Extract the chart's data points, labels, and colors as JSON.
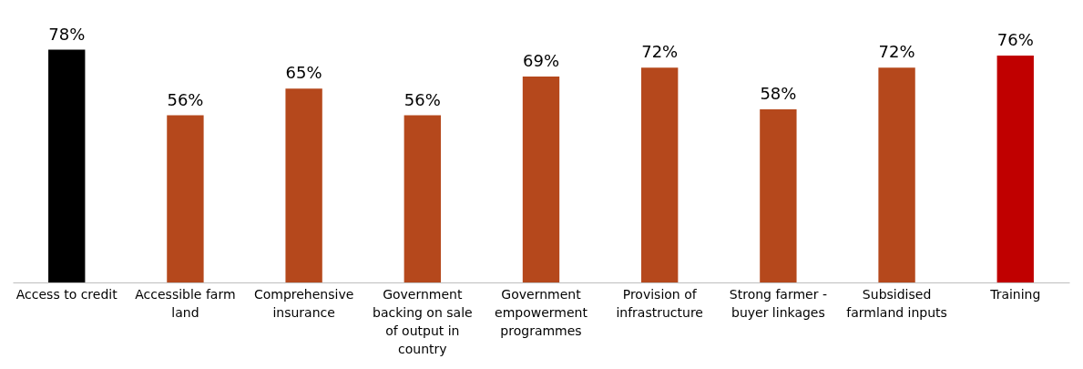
{
  "chart_data": {
    "type": "bar",
    "categories": [
      "Access to credit",
      "Accessible farm land",
      "Comprehensive insurance",
      "Government backing on sale of output in country",
      "Government empowerment programmes",
      "Provision of infrastructure",
      "Strong farmer - buyer linkages",
      "Subsidised farmland inputs",
      "Training"
    ],
    "values": [
      78,
      56,
      65,
      56,
      69,
      72,
      58,
      72,
      76
    ],
    "colors": [
      "#000000",
      "#b5481c",
      "#b5481c",
      "#b5481c",
      "#b5481c",
      "#b5481c",
      "#b5481c",
      "#b5481c",
      "#c00000"
    ],
    "value_labels": [
      "78%",
      "56%",
      "65%",
      "56%",
      "69%",
      "72%",
      "58%",
      "72%",
      "76%"
    ]
  }
}
